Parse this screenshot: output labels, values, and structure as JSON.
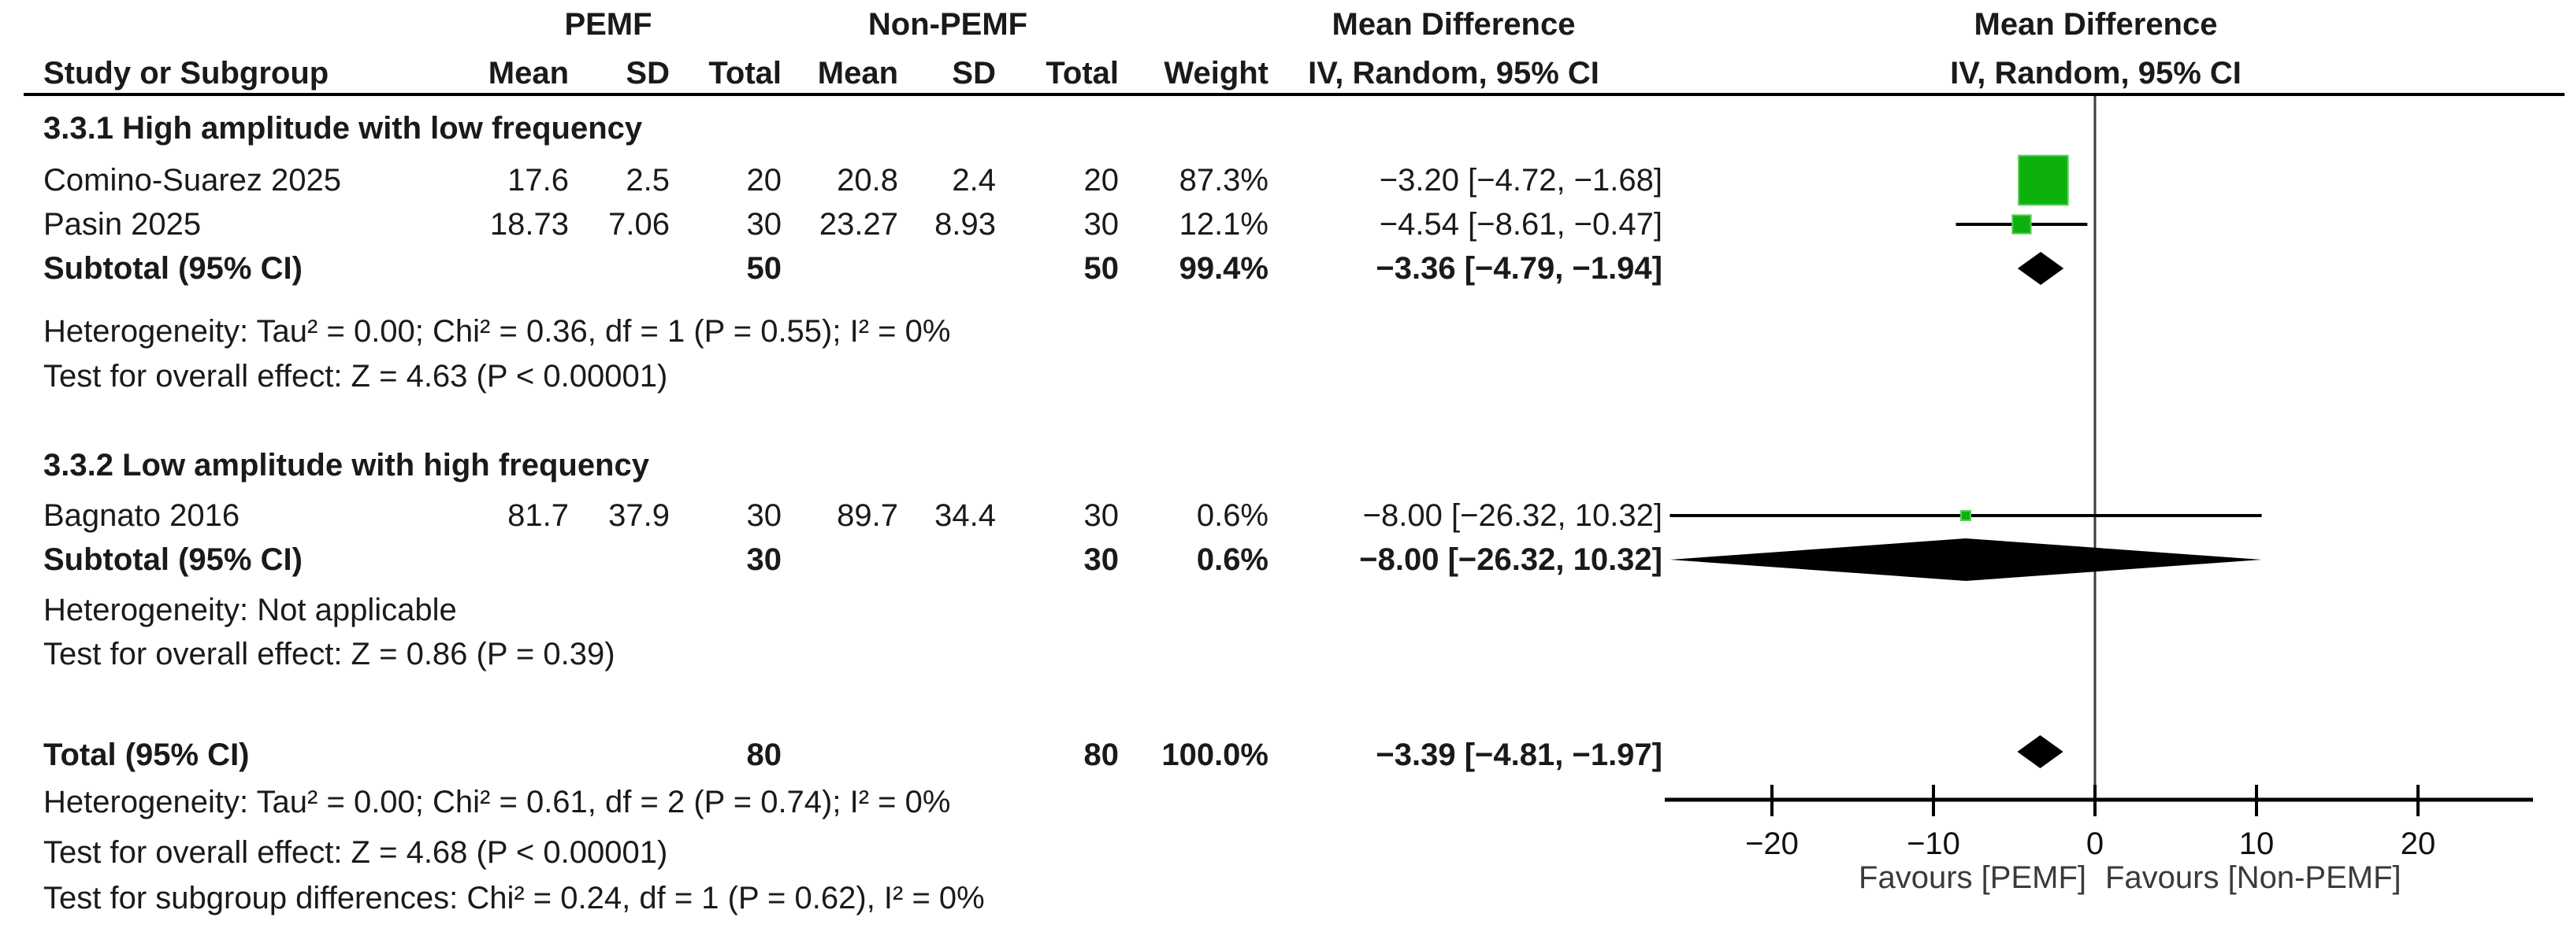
{
  "header": {
    "group1": "PEMF",
    "group2": "Non-PEMF",
    "md_col_line1": "Mean Difference",
    "md_col_line2": "IV, Random, 95% CI",
    "plot_col_line1": "Mean Difference",
    "plot_col_line2": "IV, Random, 95% CI",
    "study": "Study or Subgroup",
    "mean": "Mean",
    "sd": "SD",
    "total": "Total",
    "weight": "Weight"
  },
  "sections": [
    {
      "heading": "3.3.1 High amplitude with low frequency",
      "studies": [
        {
          "name": "Comino-Suarez 2025",
          "mean1": "17.6",
          "sd1": "2.5",
          "n1": "20",
          "mean2": "20.8",
          "sd2": "2.4",
          "n2": "20",
          "weight": "87.3%",
          "ci": "−3.20 [−4.72, −1.68]"
        },
        {
          "name": "Pasin 2025",
          "mean1": "18.73",
          "sd1": "7.06",
          "n1": "30",
          "mean2": "23.27",
          "sd2": "8.93",
          "n2": "30",
          "weight": "12.1%",
          "ci": "−4.54 [−8.61, −0.47]"
        }
      ],
      "subtotal": {
        "label": "Subtotal (95% CI)",
        "n1": "50",
        "n2": "50",
        "weight": "99.4%",
        "ci": "−3.36 [−4.79, −1.94]"
      },
      "heterogeneity": "Heterogeneity: Tau² = 0.00; Chi² = 0.36, df = 1 (P = 0.55); I² = 0%",
      "overall_effect": "Test for overall effect: Z = 4.63 (P < 0.00001)"
    },
    {
      "heading": "3.3.2 Low amplitude with high frequency",
      "studies": [
        {
          "name": "Bagnato 2016",
          "mean1": "81.7",
          "sd1": "37.9",
          "n1": "30",
          "mean2": "89.7",
          "sd2": "34.4",
          "n2": "30",
          "weight": "0.6%",
          "ci": "−8.00 [−26.32, 10.32]"
        }
      ],
      "subtotal": {
        "label": "Subtotal (95% CI)",
        "n1": "30",
        "n2": "30",
        "weight": "0.6%",
        "ci": "−8.00 [−26.32, 10.32]"
      },
      "heterogeneity": "Heterogeneity: Not applicable",
      "overall_effect": "Test for overall effect: Z = 0.86 (P = 0.39)"
    }
  ],
  "total": {
    "label": "Total (95% CI)",
    "n1": "80",
    "n2": "80",
    "weight": "100.0%",
    "ci": "−3.39 [−4.81, −1.97]",
    "heterogeneity": "Heterogeneity: Tau² = 0.00; Chi² = 0.61, df = 2 (P = 0.74); I² = 0%",
    "overall_effect": "Test for overall effect: Z = 4.68 (P < 0.00001)",
    "subgroup_diff": "Test for subgroup differences: Chi² = 0.24, df = 1 (P = 0.62), I² = 0%"
  },
  "axis": {
    "favours_left": "Favours [PEMF]",
    "favours_right": "Favours [Non-PEMF]"
  },
  "chart_data": {
    "type": "scatter",
    "title": "Forest plot — Mean Difference, IV, Random, 95% CI",
    "xlabel_left": "Favours [PEMF]",
    "xlabel_right": "Favours [Non-PEMF]",
    "xlim": [
      -27,
      27
    ],
    "x_ticks": [
      -20,
      -10,
      0,
      10,
      20
    ],
    "grid": false,
    "marker_color": "#0CB10C",
    "marker_edge_color": "#5CCC5C",
    "diamond_color": "#000000",
    "items": [
      {
        "id": "comino",
        "label": "Comino-Suarez 2025",
        "marker": "square",
        "md": -3.2,
        "ci_low": -4.72,
        "ci_high": -1.68,
        "weight_pct": 87.3
      },
      {
        "id": "pasin",
        "label": "Pasin 2025",
        "marker": "square",
        "md": -4.54,
        "ci_low": -8.61,
        "ci_high": -0.47,
        "weight_pct": 12.1
      },
      {
        "id": "subtotal1",
        "label": "Subtotal 3.3.1 (95% CI)",
        "marker": "diamond",
        "md": -3.36,
        "ci_low": -4.79,
        "ci_high": -1.94
      },
      {
        "id": "bagnato",
        "label": "Bagnato 2016",
        "marker": "square",
        "md": -8.0,
        "ci_low": -26.32,
        "ci_high": 10.32,
        "weight_pct": 0.6
      },
      {
        "id": "subtotal2",
        "label": "Subtotal 3.3.2 (95% CI)",
        "marker": "diamond",
        "md": -8.0,
        "ci_low": -26.32,
        "ci_high": 10.32
      },
      {
        "id": "total",
        "label": "Total (95% CI)",
        "marker": "diamond",
        "md": -3.39,
        "ci_low": -4.81,
        "ci_high": -1.97
      }
    ]
  }
}
